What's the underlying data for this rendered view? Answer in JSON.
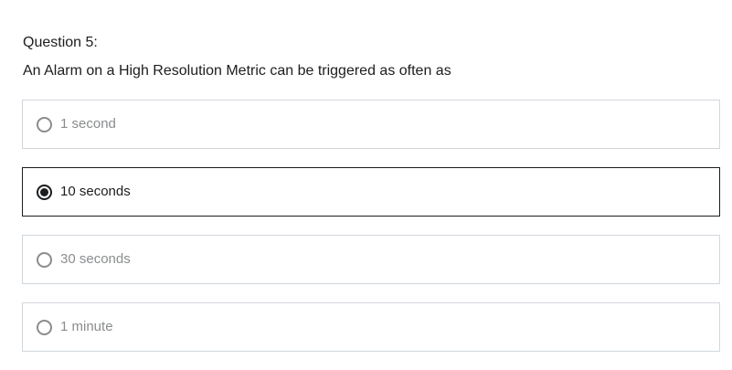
{
  "question": {
    "number_label": "Question 5:",
    "text": "An Alarm on a High Resolution Metric can be triggered as often as"
  },
  "options": [
    {
      "label": "1 second",
      "selected": false
    },
    {
      "label": "10 seconds",
      "selected": true
    },
    {
      "label": "30 seconds",
      "selected": false
    },
    {
      "label": "1 minute",
      "selected": false
    }
  ],
  "colors": {
    "text": "#1c1d1f",
    "muted": "#8a8c8e",
    "border": "#d1d7dc",
    "selected_border": "#1c1d1f"
  }
}
